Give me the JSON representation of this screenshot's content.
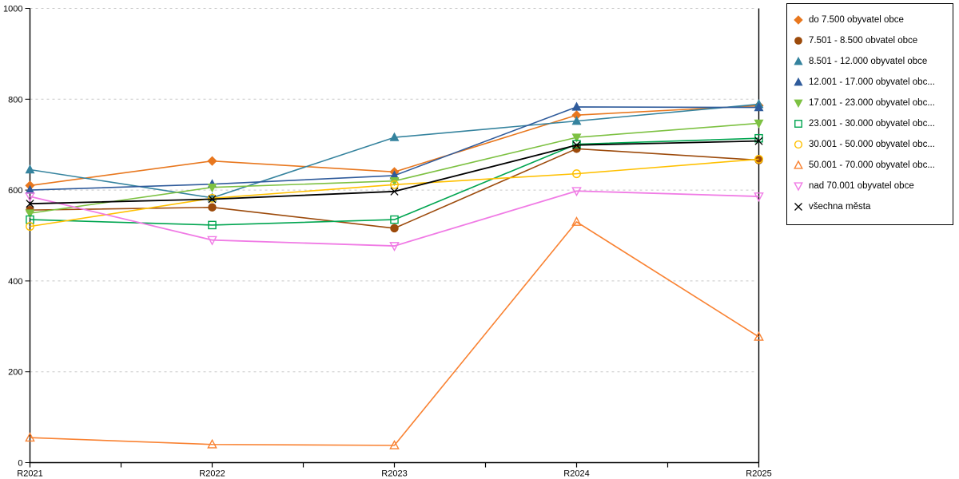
{
  "page": {
    "background": "#FFFFFF",
    "axis_color": "#000000",
    "grid_color": "#C8C8C8"
  },
  "legend": {
    "border_color": "#000000",
    "background": "#FFFFFF",
    "position": "outside-top-right"
  },
  "chart_data": {
    "type": "line",
    "title": "",
    "xlabel": "",
    "ylabel": "",
    "x_categories": [
      "R2021",
      "R2022",
      "R2023",
      "R2024",
      "R2025"
    ],
    "x_minor_ticks_between_categories": true,
    "ylim": [
      0,
      1000
    ],
    "yticks": [
      0,
      200,
      400,
      600,
      800,
      1000
    ],
    "grid": "horizontal-dashed",
    "legend_position": "outside-top-right",
    "series": [
      {
        "label": "do 7.500 obyvatel obce",
        "color": "#E8771E",
        "marker": "diamond",
        "filled": true,
        "values": [
          610,
          664,
          640,
          765,
          786
        ]
      },
      {
        "label": "7.501 - 8.500 obvatel obce",
        "color": "#9C4A0B",
        "marker": "circle",
        "filled": true,
        "values": [
          556,
          562,
          516,
          691,
          666
        ]
      },
      {
        "label": "8.501 - 12.000 obyvatel obce",
        "color": "#35839E",
        "marker": "triangle-up",
        "filled": true,
        "values": [
          645,
          583,
          716,
          752,
          789
        ]
      },
      {
        "label": "12.001 - 17.000 obyvatel obc...",
        "color": "#2F5B9B",
        "marker": "triangle-up",
        "filled": true,
        "values": [
          600,
          613,
          632,
          783,
          782
        ]
      },
      {
        "label": "17.001 - 23.000 obyvatel obc...",
        "color": "#7DC142",
        "marker": "triangle-down",
        "filled": true,
        "values": [
          549,
          606,
          620,
          716,
          747
        ]
      },
      {
        "label": "23.001 - 30.000 obyvatel obc...",
        "color": "#00A550",
        "marker": "square",
        "filled": false,
        "values": [
          535,
          523,
          535,
          701,
          714
        ]
      },
      {
        "label": "30.001 - 50.000 obyvatel obc...",
        "color": "#FFC000",
        "marker": "circle",
        "filled": false,
        "values": [
          520,
          582,
          612,
          636,
          668
        ]
      },
      {
        "label": "50.001 - 70.000 obyvatel obc...",
        "color": "#F98232",
        "marker": "triangle-up",
        "filled": false,
        "values": [
          55,
          40,
          38,
          530,
          277
        ]
      },
      {
        "label": "nad 70.001 obyvatel obce",
        "color": "#F07BE5",
        "marker": "triangle-down",
        "filled": false,
        "values": [
          586,
          490,
          477,
          598,
          586
        ]
      },
      {
        "label": "všechna města",
        "color": "#000000",
        "marker": "x",
        "filled": true,
        "values": [
          570,
          580,
          597,
          699,
          708
        ]
      }
    ]
  }
}
